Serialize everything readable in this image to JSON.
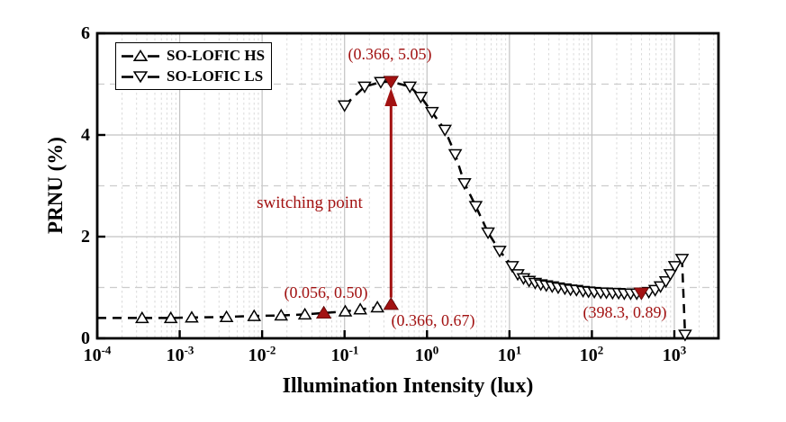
{
  "chart_data": {
    "type": "line",
    "title": "",
    "xlabel": "Illumination Intensity (lux)",
    "ylabel": "PRNU (%)",
    "x_scale": "log",
    "xlim": [
      0.0001,
      3430
    ],
    "ylim": [
      0,
      6
    ],
    "x_ticks": [
      {
        "base": "10",
        "exp": "-4"
      },
      {
        "base": "10",
        "exp": "-3"
      },
      {
        "base": "10",
        "exp": "-2"
      },
      {
        "base": "10",
        "exp": "-1"
      },
      {
        "base": "10",
        "exp": "0"
      },
      {
        "base": "10",
        "exp": "1"
      },
      {
        "base": "10",
        "exp": "2"
      },
      {
        "base": "10",
        "exp": "3"
      }
    ],
    "x_tick_exponents": [
      -4,
      -3,
      -2,
      -1,
      0,
      1,
      2,
      3
    ],
    "y_ticks": [
      "0",
      "2",
      "4",
      "6"
    ],
    "y_tick_values": [
      0,
      2,
      4,
      6
    ],
    "grid": {
      "vertical_major_exponents": [
        -3,
        -2,
        -1,
        0,
        1,
        2,
        3
      ],
      "horizontal_solid": [
        2,
        4
      ],
      "horizontal_dashed": [
        1,
        3,
        5
      ]
    },
    "legend_position": "top-left",
    "colors": {
      "series": "#000000",
      "marker_fill": "#ffffff",
      "annotation": "#A21212",
      "grid_major": "#c2c2c2",
      "grid_minor": "#dadada",
      "grid_dashed": "#cccccc",
      "axis_box": "#000000"
    },
    "series": [
      {
        "name": "SO-LOFIC HS",
        "marker": "triangle-up",
        "line_style": "dashed",
        "first_point_line_only": true,
        "points": [
          [
            0.0001,
            0.4
          ],
          [
            0.00035,
            0.4
          ],
          [
            0.00078,
            0.4
          ],
          [
            0.0014,
            0.41
          ],
          [
            0.0037,
            0.42
          ],
          [
            0.008,
            0.44
          ],
          [
            0.017,
            0.45
          ],
          [
            0.033,
            0.47
          ],
          [
            0.056,
            0.5
          ],
          [
            0.102,
            0.53
          ],
          [
            0.155,
            0.57
          ],
          [
            0.25,
            0.61
          ],
          [
            0.366,
            0.67
          ]
        ]
      },
      {
        "name": "SO-LOFIC LS",
        "marker": "triangle-down",
        "line_style": "dashed",
        "first_point_line_only": false,
        "points": [
          [
            0.1,
            4.58
          ],
          [
            0.175,
            4.95
          ],
          [
            0.275,
            5.04
          ],
          [
            0.366,
            5.05
          ],
          [
            0.62,
            4.95
          ],
          [
            0.84,
            4.75
          ],
          [
            1.15,
            4.45
          ],
          [
            1.65,
            4.1
          ],
          [
            2.2,
            3.62
          ],
          [
            2.85,
            3.05
          ],
          [
            3.9,
            2.6
          ],
          [
            5.5,
            2.08
          ],
          [
            7.6,
            1.72
          ],
          [
            10.8,
            1.42
          ],
          [
            12.6,
            1.26
          ],
          [
            14.8,
            1.18
          ],
          [
            17.3,
            1.13
          ],
          [
            20.5,
            1.09
          ],
          [
            24,
            1.06
          ],
          [
            28,
            1.04
          ],
          [
            33,
            1.02
          ],
          [
            39,
            1.0
          ],
          [
            47,
            0.98
          ],
          [
            55,
            0.96
          ],
          [
            65,
            0.95
          ],
          [
            78,
            0.93
          ],
          [
            91,
            0.92
          ],
          [
            107,
            0.91
          ],
          [
            128,
            0.9
          ],
          [
            150,
            0.9
          ],
          [
            178,
            0.89
          ],
          [
            211,
            0.89
          ],
          [
            247,
            0.88
          ],
          [
            295,
            0.88
          ],
          [
            350,
            0.88
          ],
          [
            398.3,
            0.89
          ],
          [
            490,
            0.91
          ],
          [
            585,
            0.95
          ],
          [
            680,
            1.02
          ],
          [
            790,
            1.12
          ],
          [
            895,
            1.26
          ],
          [
            1015,
            1.42
          ],
          [
            1240,
            1.56
          ],
          [
            1350,
            0.07
          ]
        ]
      }
    ],
    "annotations": {
      "arrow": {
        "label": "switching point",
        "x": 0.366,
        "y_from": 0.8,
        "y_to": 4.92
      },
      "points": [
        {
          "label": "(0.366, 5.05)",
          "x": 0.366,
          "y": 5.05,
          "marker": "triangle-down"
        },
        {
          "label": "(0.056, 0.50)",
          "x": 0.056,
          "y": 0.5,
          "marker": "triangle-up"
        },
        {
          "label": "(0.366, 0.67)",
          "x": 0.366,
          "y": 0.67,
          "marker": "triangle-up"
        },
        {
          "label": "(398.3, 0.89)",
          "x": 398.3,
          "y": 0.89,
          "marker": "triangle-down"
        }
      ]
    }
  }
}
